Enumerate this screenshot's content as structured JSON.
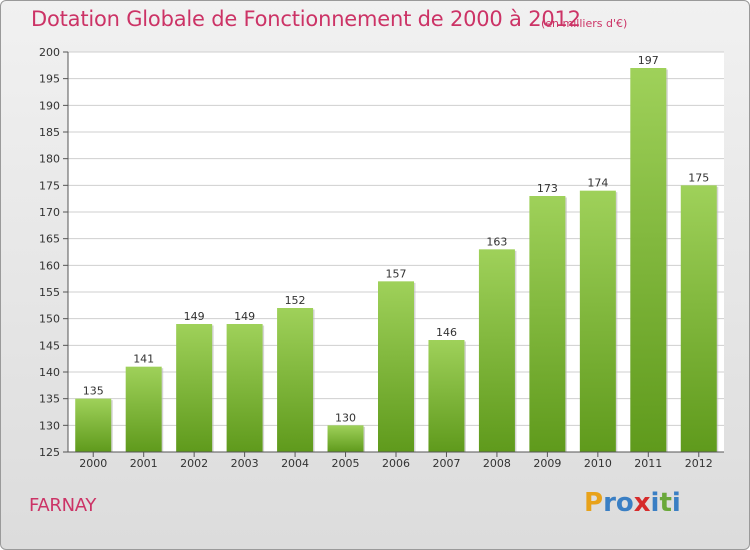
{
  "title": "Dotation Globale de Fonctionnement de 2000 à 2012",
  "subtitle": "(en milliers d'€)",
  "place": "FARNAY",
  "brand": {
    "letters": [
      "P",
      "r",
      "o",
      "x",
      "i",
      "t",
      "i"
    ],
    "colors": [
      "#e8a21a",
      "#3a7fc4",
      "#3a7fc4",
      "#d62b2b",
      "#3a7fc4",
      "#6aa83a",
      "#3a7fc4"
    ]
  },
  "colors": {
    "title": "#cc3366",
    "bar_top": "#9fd15a",
    "bar_bottom": "#5f9a1c",
    "grid": "#cfcfcf",
    "axis": "#555555"
  },
  "chart_data": {
    "type": "bar",
    "categories": [
      "2000",
      "2001",
      "2002",
      "2003",
      "2004",
      "2005",
      "2006",
      "2007",
      "2008",
      "2009",
      "2010",
      "2011",
      "2012"
    ],
    "values": [
      135,
      141,
      149,
      149,
      152,
      130,
      157,
      146,
      163,
      173,
      174,
      197,
      175
    ],
    "ylim": [
      125,
      200
    ],
    "yticks": [
      125,
      130,
      135,
      140,
      145,
      150,
      155,
      160,
      165,
      170,
      175,
      180,
      185,
      190,
      195,
      200
    ],
    "grid": true,
    "xlabel": "",
    "ylabel": ""
  }
}
